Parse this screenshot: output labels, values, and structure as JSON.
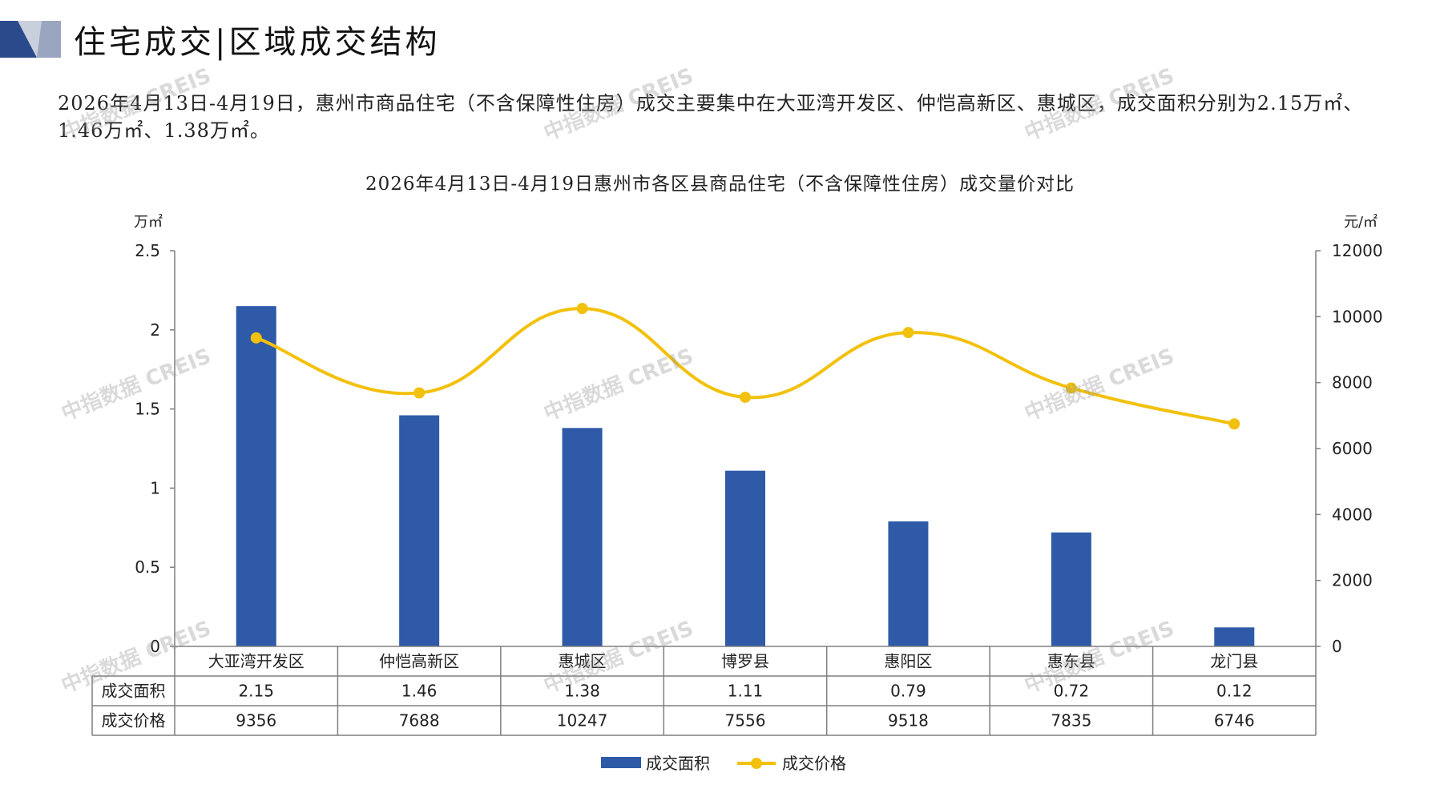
{
  "header": {
    "title": "住宅成交|区域成交结构"
  },
  "summary": "2026年4月13日-4月19日，惠州市商品住宅（不含保障性住房）成交主要集中在大亚湾开发区、仲恺高新区、惠城区，成交面积分别为2.15万㎡、1.46万㎡、1.38万㎡。",
  "watermark": "中指数据 CREIS",
  "colors": {
    "bar": "#2E5AA8",
    "line": "#F2C10D",
    "axis": "#7f7f7f",
    "text": "#222222",
    "band_dark": "#2B4A8C",
    "band_light": "#9aa6bf"
  },
  "chart_data": {
    "type": "bar+line",
    "title": "2026年4月13日-4月19日惠州市各区县商品住宅（不含保障性住房）成交量价对比",
    "y_left_unit": "万㎡",
    "y_right_unit": "元/㎡",
    "y_left_ticks": [
      "2.5",
      "2",
      "1.5",
      "1",
      "0.5",
      "0"
    ],
    "y_right_ticks": [
      "12000",
      "10000",
      "8000",
      "6000",
      "4000",
      "2000",
      "0"
    ],
    "ylim_left": [
      0,
      2.5
    ],
    "ylim_right": [
      0,
      12000
    ],
    "categories": [
      "大亚湾开发区",
      "仲恺高新区",
      "惠城区",
      "博罗县",
      "惠阳区",
      "惠东县",
      "龙门县"
    ],
    "series": [
      {
        "name": "成交面积",
        "type": "bar",
        "axis": "left",
        "values": [
          2.15,
          1.46,
          1.38,
          1.11,
          0.79,
          0.72,
          0.12
        ],
        "labels": [
          "2.15",
          "1.46",
          "1.38",
          "1.11",
          "0.79",
          "0.72",
          "0.12"
        ]
      },
      {
        "name": "成交价格",
        "type": "line",
        "axis": "right",
        "values": [
          9356,
          7688,
          10247,
          7556,
          9518,
          7835,
          6746
        ],
        "labels": [
          "9356",
          "7688",
          "10247",
          "7556",
          "9518",
          "7835",
          "6746"
        ]
      }
    ],
    "legend_position": "bottom",
    "grid": false
  }
}
